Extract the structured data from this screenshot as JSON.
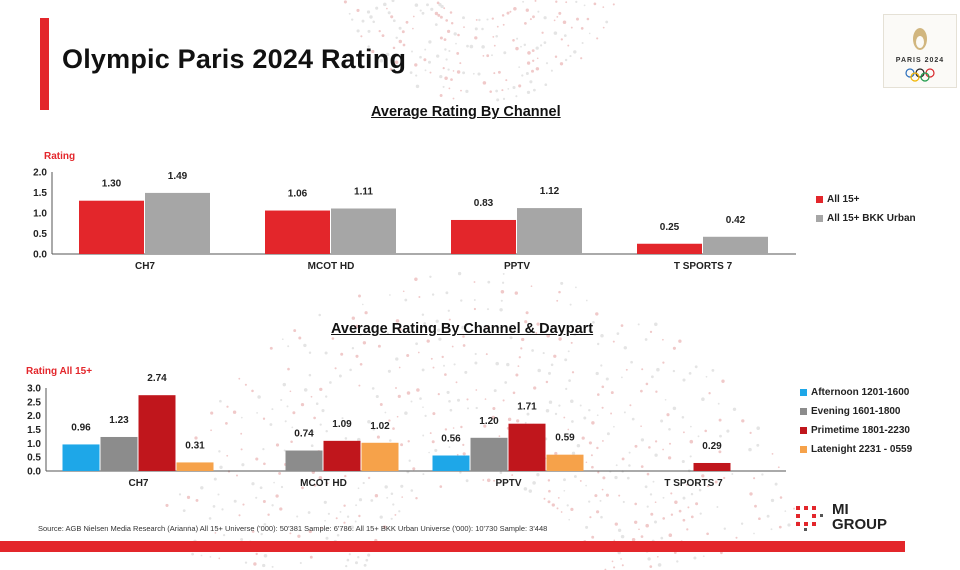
{
  "page": {
    "title": "Olympic Paris 2024 Rating",
    "logo_text": "PARIS 2024",
    "source": "Source: AGB Nielsen Media Research (Arianna) All 15+ Universe ('000): 50'381 Sample: 6'786. All 15+ BKK Urban Universe ('000): 10'730 Sample: 3'448",
    "company_logo": {
      "line1": "MI",
      "line2": "GROUP"
    }
  },
  "colors": {
    "brand_red": "#e3262b",
    "all15": "#e3262b",
    "bkk": "#a6a6a6",
    "afternoon": "#1ea7e8",
    "evening": "#8c8c8c",
    "primetime": "#c0161c",
    "latenight": "#f6a24a"
  },
  "chart_data": [
    {
      "type": "bar",
      "title": "Average Rating By Channel",
      "ylabel": "Rating",
      "xlabel": "",
      "ylim": [
        0,
        2.0
      ],
      "yticks": [
        "0.0",
        "0.5",
        "1.0",
        "1.5",
        "2.0"
      ],
      "categories": [
        "CH7",
        "MCOT HD",
        "PPTV",
        "T SPORTS 7"
      ],
      "legend_position": "right",
      "series": [
        {
          "name": "All 15+",
          "color": "#e3262b",
          "values": [
            1.3,
            1.06,
            0.83,
            0.25
          ],
          "labels": [
            "1.30",
            "1.06",
            "0.83",
            "0.25"
          ]
        },
        {
          "name": "All 15+ BKK Urban",
          "color": "#a6a6a6",
          "values": [
            1.49,
            1.11,
            1.12,
            0.42
          ],
          "labels": [
            "1.49",
            "1.11",
            "1.12",
            "0.42"
          ]
        }
      ]
    },
    {
      "type": "bar",
      "title": "Average Rating By Channel & Daypart",
      "ylabel": "Rating All 15+",
      "xlabel": "",
      "ylim": [
        0,
        3.0
      ],
      "yticks": [
        "0.0",
        "0.5",
        "1.0",
        "1.5",
        "2.0",
        "2.5",
        "3.0"
      ],
      "categories": [
        "CH7",
        "MCOT HD",
        "PPTV",
        "T SPORTS 7"
      ],
      "legend_position": "right",
      "series": [
        {
          "name": "Afternoon 1201-1600",
          "color": "#1ea7e8",
          "values": [
            0.96,
            null,
            0.56,
            null
          ],
          "labels": [
            "0.96",
            "",
            "0.56",
            ""
          ]
        },
        {
          "name": "Evening 1601-1800",
          "color": "#8c8c8c",
          "values": [
            1.23,
            0.74,
            1.2,
            null
          ],
          "labels": [
            "1.23",
            "0.74",
            "1.20",
            ""
          ]
        },
        {
          "name": "Primetime 1801-2230",
          "color": "#c0161c",
          "values": [
            2.74,
            1.09,
            1.71,
            0.29
          ],
          "labels": [
            "2.74",
            "1.09",
            "1.71",
            "0.29"
          ]
        },
        {
          "name": "Latenight 2231 - 0559",
          "color": "#f6a24a",
          "values": [
            0.31,
            1.02,
            0.59,
            null
          ],
          "labels": [
            "0.31",
            "1.02",
            "0.59",
            ""
          ]
        }
      ]
    }
  ]
}
